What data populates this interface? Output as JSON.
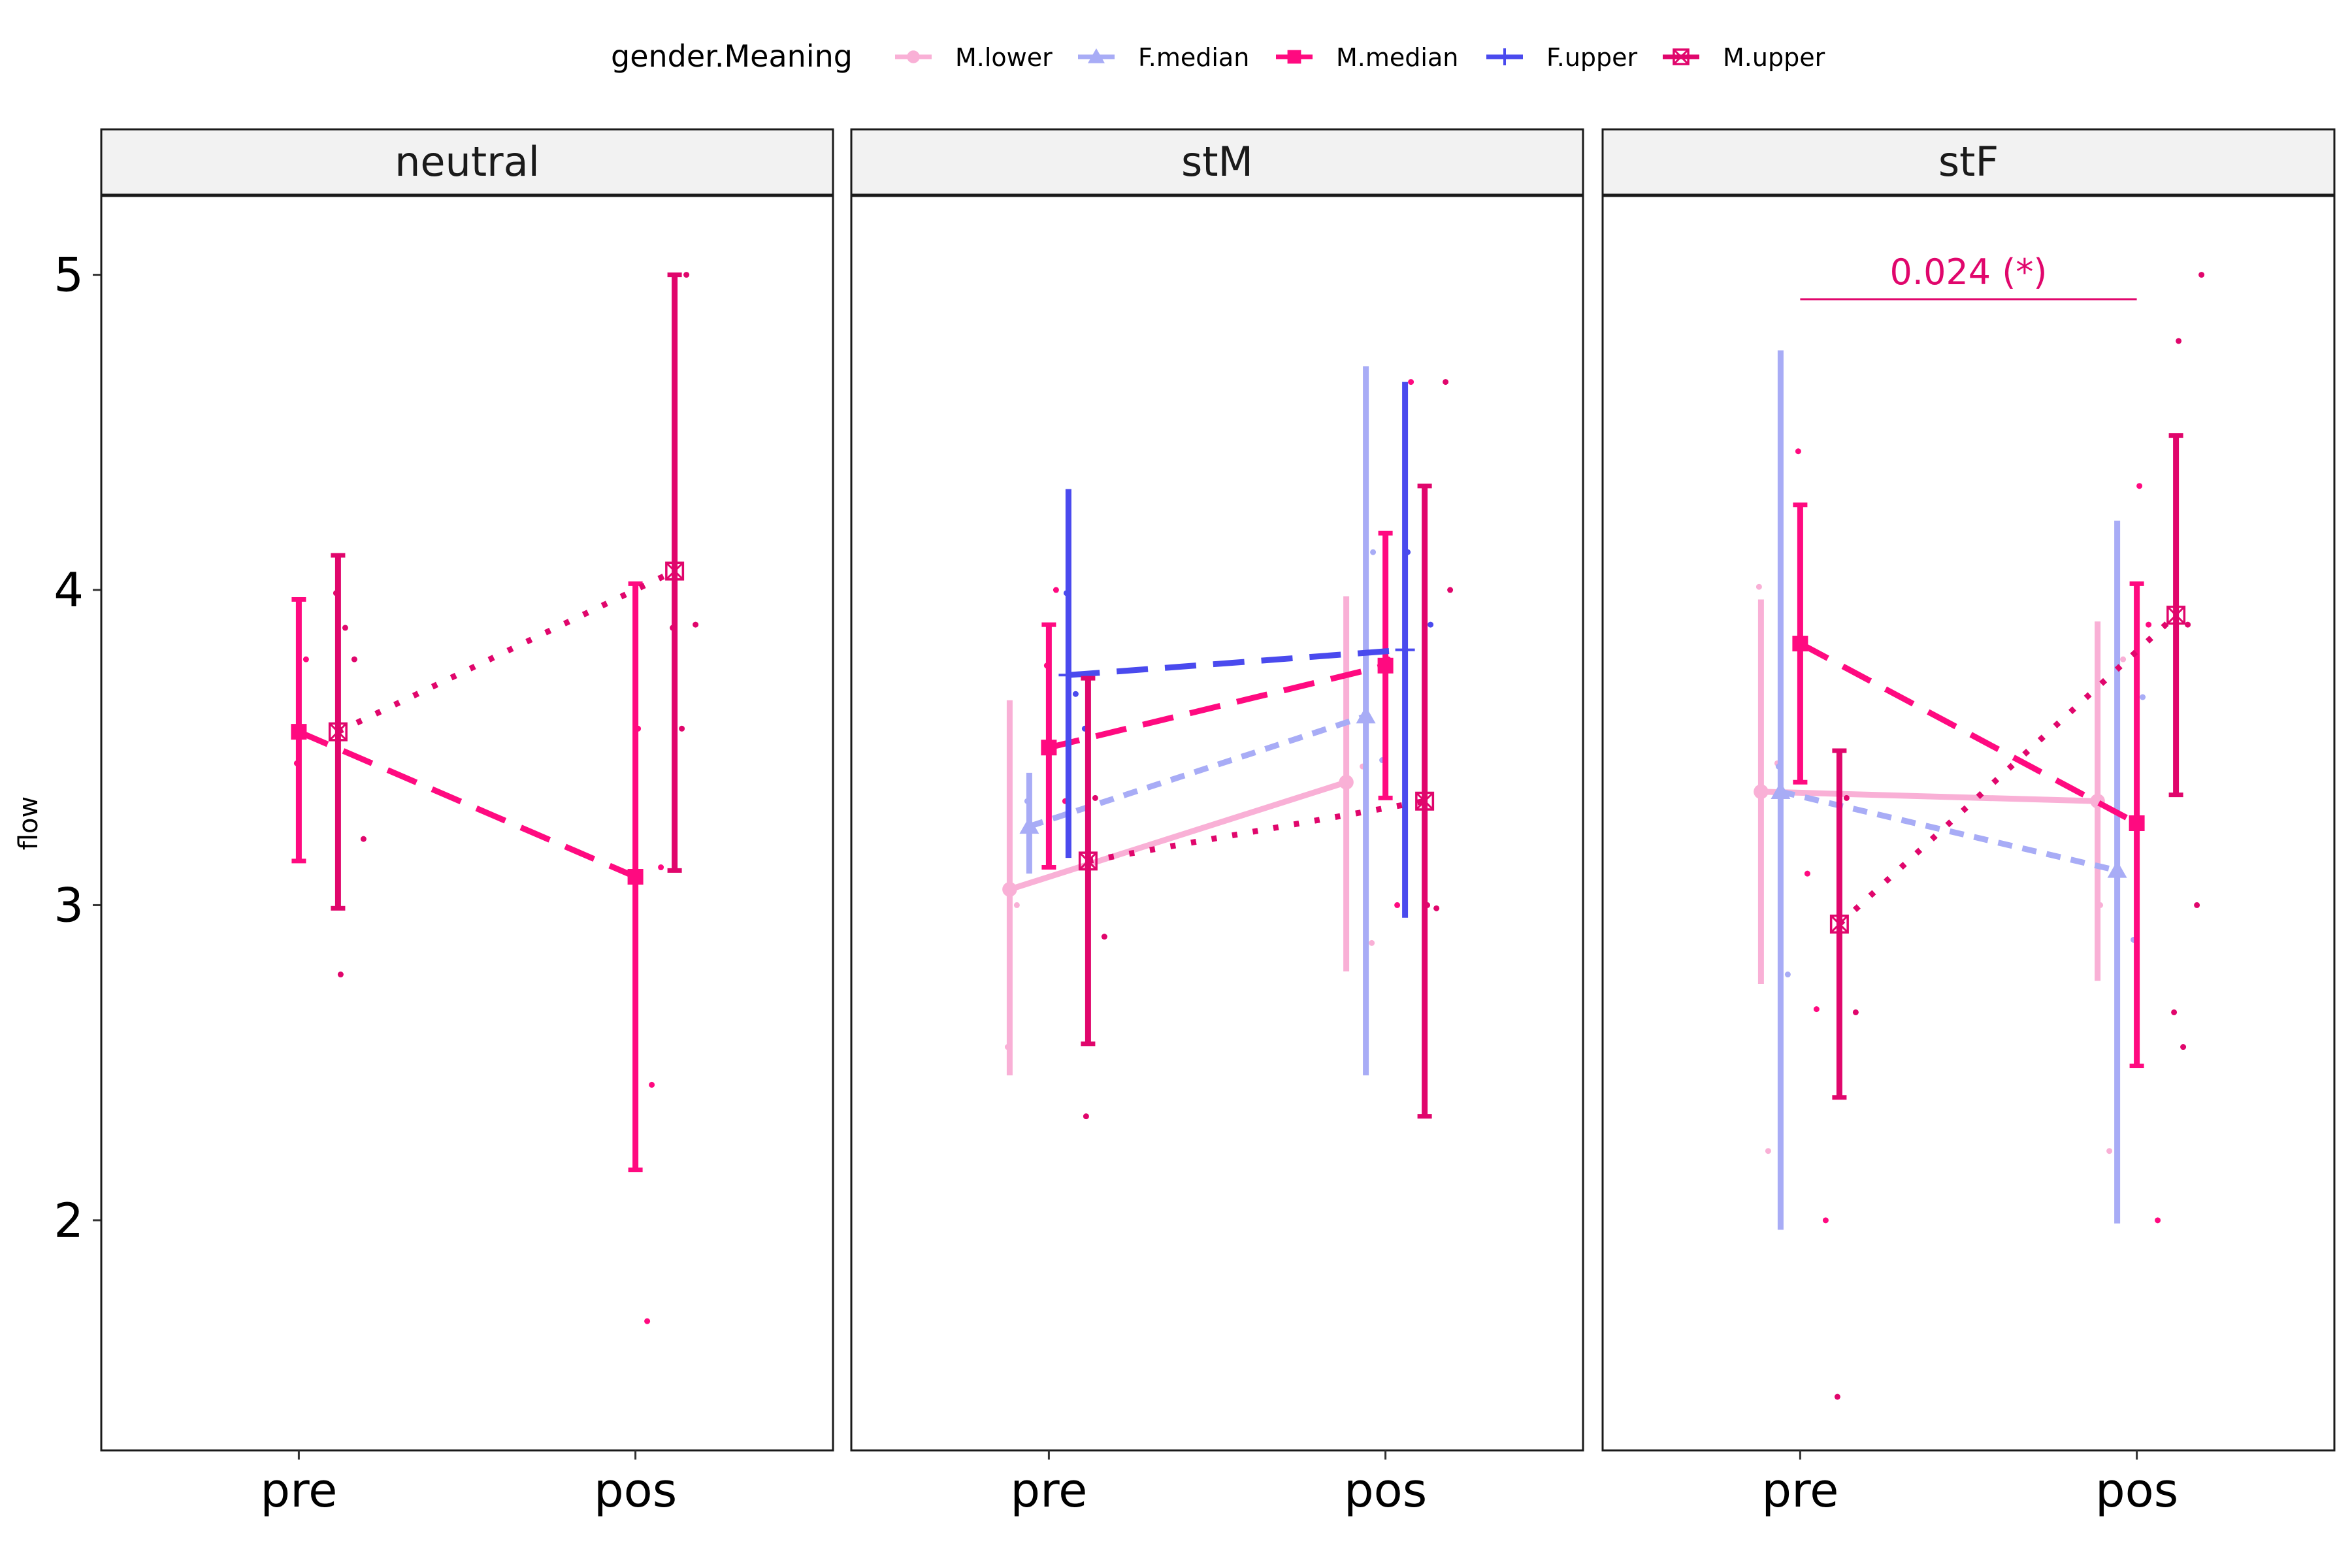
{
  "chart_data": {
    "type": "line",
    "ylabel": "flow",
    "x_categories": [
      "pre",
      "pos"
    ],
    "y_ticks": [
      2,
      3,
      4,
      5
    ],
    "ylim": [
      1.27,
      5.25
    ],
    "legend": {
      "title": "gender.Meaning",
      "placement": "top",
      "entries": [
        {
          "name": "M.lower",
          "color": "#f9b0d6",
          "shape": "circle",
          "linetype": "solid"
        },
        {
          "name": "F.median",
          "color": "#a8acf6",
          "shape": "triangle",
          "linetype": "dashed"
        },
        {
          "name": "M.median",
          "color": "#ff0a80",
          "shape": "square",
          "linetype": "longdash"
        },
        {
          "name": "F.upper",
          "color": "#4a4aee",
          "shape": "plus",
          "linetype": "longdash"
        },
        {
          "name": "M.upper",
          "color": "#e0066c",
          "shape": "square-cross",
          "linetype": "dotted"
        }
      ]
    },
    "panels": [
      {
        "name": "neutral",
        "series": [
          {
            "name": "M.median",
            "mean": [
              3.55,
              3.09
            ],
            "lower": [
              3.14,
              2.16
            ],
            "upper": [
              3.97,
              4.02
            ],
            "points": [
              [
                0,
                3.45
              ],
              [
                0,
                3.78
              ],
              [
                1,
                2.43
              ],
              [
                1,
                3.12
              ],
              [
                1,
                3.56
              ],
              [
                1,
                1.68
              ]
            ]
          },
          {
            "name": "M.upper",
            "mean": [
              3.55,
              4.06
            ],
            "lower": [
              2.99,
              3.11
            ],
            "upper": [
              4.11,
              5.0
            ],
            "points": [
              [
                0,
                3.99
              ],
              [
                0,
                3.88
              ],
              [
                0,
                3.78
              ],
              [
                0,
                3.21
              ],
              [
                0,
                2.78
              ],
              [
                1,
                5.0
              ],
              [
                1,
                3.89
              ],
              [
                1,
                3.88
              ],
              [
                1,
                3.56
              ]
            ]
          }
        ]
      },
      {
        "name": "stM",
        "series": [
          {
            "name": "M.lower",
            "mean": [
              3.05,
              3.39
            ],
            "lower": [
              2.46,
              2.79
            ],
            "upper": [
              3.65,
              3.98
            ],
            "points": [
              [
                0,
                2.55
              ],
              [
                0,
                3.0
              ],
              [
                1,
                3.44
              ],
              [
                1,
                2.88
              ]
            ]
          },
          {
            "name": "F.median",
            "mean": [
              3.25,
              3.6
            ],
            "lower": [
              3.1,
              2.46
            ],
            "upper": [
              3.42,
              4.71
            ],
            "points": [
              [
                0,
                3.33
              ],
              [
                1,
                4.12
              ],
              [
                1,
                3.46
              ]
            ]
          },
          {
            "name": "M.median",
            "mean": [
              3.5,
              3.76
            ],
            "lower": [
              3.12,
              3.34
            ],
            "upper": [
              3.89,
              4.18
            ],
            "points": [
              [
                0,
                3.76
              ],
              [
                0,
                4.0
              ],
              [
                0,
                3.33
              ],
              [
                1,
                4.66
              ],
              [
                1,
                3.78
              ],
              [
                1,
                3.0
              ]
            ]
          },
          {
            "name": "F.upper",
            "mean": [
              3.73,
              3.81
            ],
            "lower": [
              3.15,
              2.96
            ],
            "upper": [
              4.32,
              4.66
            ],
            "points": [
              [
                0,
                3.99
              ],
              [
                0,
                3.67
              ],
              [
                0,
                3.56
              ],
              [
                1,
                3.89
              ],
              [
                1,
                4.12
              ]
            ]
          },
          {
            "name": "M.upper",
            "mean": [
              3.14,
              3.33
            ],
            "lower": [
              2.56,
              2.33
            ],
            "upper": [
              3.72,
              4.33
            ],
            "points": [
              [
                0,
                2.33
              ],
              [
                0,
                3.34
              ],
              [
                0,
                2.9
              ],
              [
                1,
                4.0
              ],
              [
                1,
                3.0
              ],
              [
                1,
                2.99
              ],
              [
                1,
                4.66
              ]
            ]
          }
        ]
      },
      {
        "name": "stF",
        "series": [
          {
            "name": "M.lower",
            "mean": [
              3.36,
              3.33
            ],
            "lower": [
              2.75,
              2.76
            ],
            "upper": [
              3.97,
              3.9
            ],
            "points": [
              [
                0,
                4.01
              ],
              [
                0,
                2.22
              ],
              [
                0,
                3.45
              ],
              [
                1,
                3.78
              ],
              [
                1,
                3.0
              ],
              [
                1,
                2.22
              ]
            ]
          },
          {
            "name": "F.median",
            "mean": [
              3.36,
              3.11
            ],
            "lower": [
              1.97,
              1.99
            ],
            "upper": [
              4.76,
              4.22
            ],
            "points": [
              [
                0,
                3.44
              ],
              [
                0,
                2.78
              ],
              [
                1,
                2.89
              ],
              [
                1,
                3.66
              ]
            ]
          },
          {
            "name": "M.median",
            "mean": [
              3.83,
              3.26
            ],
            "lower": [
              3.39,
              2.49
            ],
            "upper": [
              4.27,
              4.02
            ],
            "points": [
              [
                0,
                4.44
              ],
              [
                0,
                3.1
              ],
              [
                0,
                2.67
              ],
              [
                0,
                2.0
              ],
              [
                1,
                4.33
              ],
              [
                1,
                3.89
              ],
              [
                1,
                2.0
              ]
            ]
          },
          {
            "name": "M.upper",
            "mean": [
              2.94,
              3.92
            ],
            "lower": [
              2.39,
              3.35
            ],
            "upper": [
              3.49,
              4.49
            ],
            "points": [
              [
                0,
                1.44
              ],
              [
                0,
                3.34
              ],
              [
                0,
                2.66
              ],
              [
                1,
                5.0
              ],
              [
                1,
                4.79
              ],
              [
                1,
                3.89
              ],
              [
                1,
                3.0
              ],
              [
                1,
                2.66
              ],
              [
                1,
                2.55
              ]
            ]
          }
        ]
      }
    ],
    "annotations": [
      {
        "panel": "stF",
        "text": "0.024 (*)",
        "color": "#e0066c",
        "from": "pre",
        "to": "pos"
      }
    ]
  }
}
